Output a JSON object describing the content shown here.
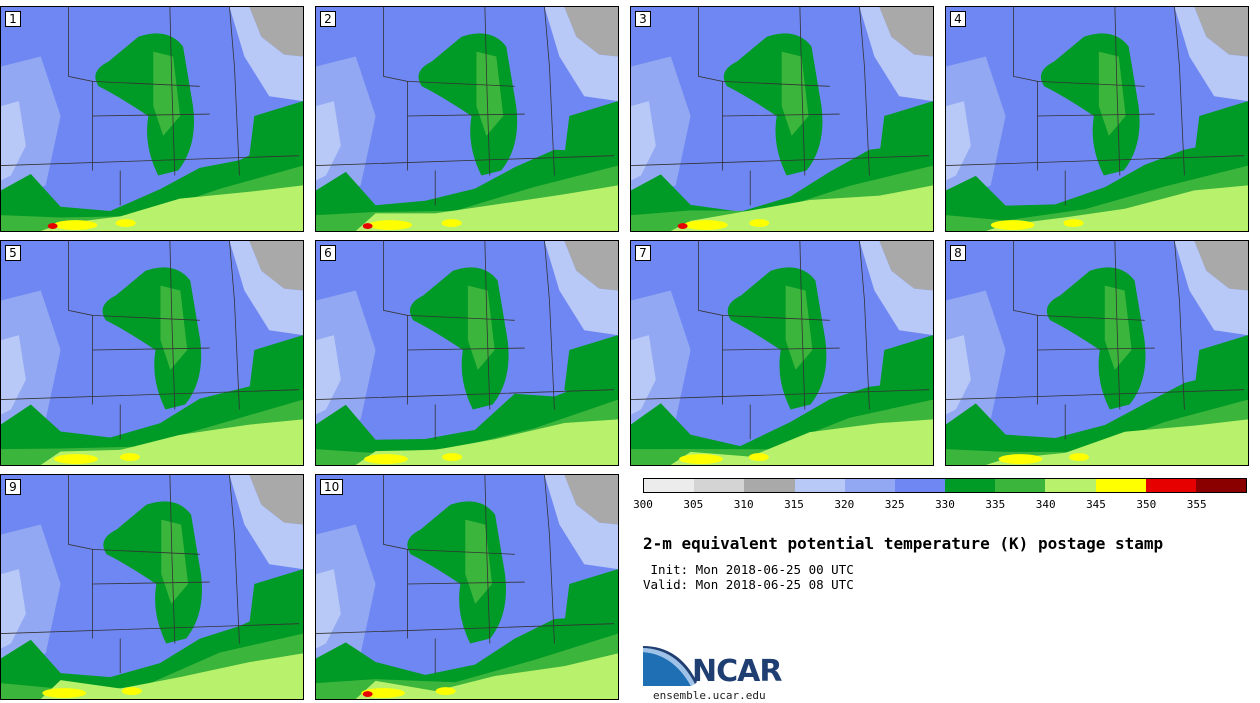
{
  "title": "2-m equivalent potential temperature (K) postage stamp",
  "init_label": " Init: Mon 2018-06-25 00 UTC",
  "valid_label": "Valid: Mon 2018-06-25 08 UTC",
  "logo": {
    "text": "NCAR",
    "url": "ensemble.ucar.edu"
  },
  "panels": [
    "1",
    "2",
    "3",
    "4",
    "5",
    "6",
    "7",
    "8",
    "9",
    "10"
  ],
  "colorbar": {
    "ticks": [
      "300",
      "305",
      "310",
      "315",
      "320",
      "325",
      "330",
      "335",
      "340",
      "345",
      "350",
      "355"
    ],
    "colors": [
      "#ececec",
      "#d4d4d4",
      "#a9a9a9",
      "#b8c8f7",
      "#92a8f2",
      "#6f87f2",
      "#009a26",
      "#3cb53c",
      "#b8f26c",
      "#ffff00",
      "#e60000",
      "#8a0000"
    ]
  }
}
